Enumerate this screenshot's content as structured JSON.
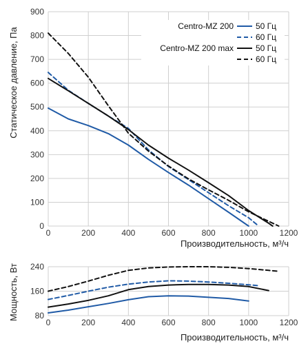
{
  "chart_data": [
    {
      "type": "line",
      "ylabel": "Статическое давление, Па",
      "xlabel": "Производительность, м³/ч",
      "xlim": [
        0,
        1200
      ],
      "ylim": [
        0,
        900
      ],
      "x_ticks": [
        0,
        200,
        400,
        600,
        800,
        1000,
        1200
      ],
      "y_ticks": [
        0,
        100,
        200,
        300,
        400,
        500,
        600,
        700,
        800,
        900
      ],
      "grid": true,
      "legend": {
        "placement": "top-right",
        "groups": [
          {
            "label": "Centro-MZ 200",
            "entries": [
              "50 Гц",
              "60 Гц"
            ]
          },
          {
            "label": "Centro-MZ 200 max",
            "entries": [
              "50 Гц",
              "60 Гц"
            ]
          }
        ]
      },
      "series": [
        {
          "group": "Centro-MZ 200",
          "name": "50 Гц",
          "color": "#1f5aa6",
          "dash": "solid",
          "x": [
            0,
            100,
            200,
            300,
            400,
            500,
            600,
            700,
            800,
            900,
            1000
          ],
          "y": [
            495,
            450,
            422,
            388,
            340,
            280,
            225,
            172,
            115,
            58,
            0
          ]
        },
        {
          "group": "Centro-MZ 200",
          "name": "60 Гц",
          "color": "#1f5aa6",
          "dash": "dashed",
          "x": [
            0,
            100,
            200,
            300,
            400,
            500,
            600,
            700,
            800,
            900,
            1000,
            1050
          ],
          "y": [
            645,
            570,
            515,
            462,
            410,
            320,
            250,
            195,
            140,
            85,
            35,
            0
          ]
        },
        {
          "group": "Centro-MZ 200 max",
          "name": "50 Гц",
          "color": "#111111",
          "dash": "solid",
          "x": [
            0,
            100,
            200,
            300,
            400,
            500,
            600,
            700,
            800,
            900,
            1000,
            1100,
            1120
          ],
          "y": [
            620,
            568,
            515,
            462,
            405,
            340,
            285,
            235,
            182,
            128,
            65,
            12,
            0
          ]
        },
        {
          "group": "Centro-MZ 200 max",
          "name": "60 Гц",
          "color": "#111111",
          "dash": "dashed",
          "x": [
            0,
            100,
            200,
            300,
            400,
            500,
            600,
            700,
            800,
            900,
            1000,
            1100,
            1150
          ],
          "y": [
            810,
            725,
            625,
            505,
            390,
            315,
            252,
            198,
            152,
            108,
            60,
            20,
            0
          ]
        }
      ]
    },
    {
      "type": "line",
      "ylabel": "Мощность, Вт",
      "xlabel": "Производительность, м³/ч",
      "xlim": [
        0,
        1200
      ],
      "ylim": [
        80,
        240
      ],
      "x_ticks": [
        0,
        200,
        400,
        600,
        800,
        1000,
        1200
      ],
      "y_ticks": [
        80,
        160,
        240
      ],
      "grid": true,
      "series": [
        {
          "group": "Centro-MZ 200",
          "name": "50 Гц",
          "color": "#1f5aa6",
          "dash": "solid",
          "x": [
            0,
            100,
            200,
            300,
            400,
            500,
            600,
            700,
            800,
            900,
            1000
          ],
          "y": [
            89,
            98,
            109,
            120,
            132,
            142,
            145,
            144,
            140,
            136,
            128
          ]
        },
        {
          "group": "Centro-MZ 200",
          "name": "60 Гц",
          "color": "#1f5aa6",
          "dash": "dashed",
          "x": [
            0,
            100,
            200,
            300,
            400,
            500,
            600,
            700,
            800,
            900,
            1000,
            1050
          ],
          "y": [
            133,
            146,
            160,
            173,
            183,
            190,
            194,
            193,
            190,
            186,
            181,
            178
          ]
        },
        {
          "group": "Centro-MZ 200 max",
          "name": "50 Гц",
          "color": "#111111",
          "dash": "solid",
          "x": [
            0,
            100,
            200,
            300,
            400,
            500,
            600,
            700,
            800,
            900,
            1000,
            1100
          ],
          "y": [
            108,
            118,
            130,
            145,
            165,
            175,
            180,
            182,
            182,
            180,
            175,
            162
          ]
        },
        {
          "group": "Centro-MZ 200 max",
          "name": "60 Гц",
          "color": "#111111",
          "dash": "dashed",
          "x": [
            0,
            100,
            200,
            300,
            400,
            500,
            600,
            700,
            800,
            900,
            1000,
            1100,
            1150
          ],
          "y": [
            160,
            175,
            193,
            212,
            228,
            236,
            239,
            240,
            240,
            238,
            234,
            228,
            225
          ]
        }
      ]
    }
  ]
}
